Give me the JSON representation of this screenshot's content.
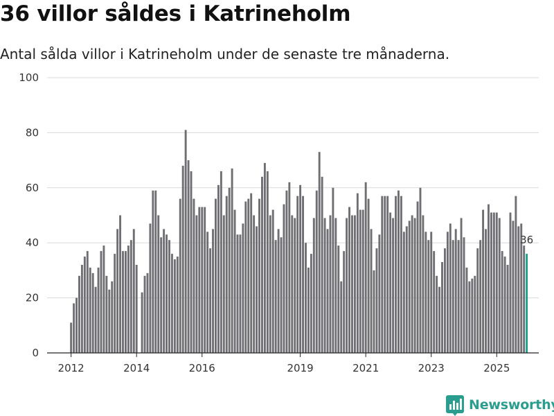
{
  "title": "36 villor såldes i Katrineholm",
  "subtitle": "Antal sålda villor i Katrineholm under de senaste tre månaderna.",
  "brand": "Newsworthy",
  "colors": {
    "bar": "#6e6e73",
    "highlight": "#1a9e8f",
    "grid": "#d9d9d9",
    "axis": "#222222",
    "brand": "#2a9d8f"
  },
  "chart_data": {
    "type": "bar",
    "title": "36 villor såldes i Katrineholm",
    "subtitle": "Antal sålda villor i Katrineholm under de senaste tre månaderna.",
    "xlabel": "",
    "ylabel": "",
    "ylim": [
      0,
      100
    ],
    "yticks": [
      "0",
      "20",
      "40",
      "60",
      "80",
      "100"
    ],
    "xticks": [
      {
        "label": "2012",
        "index": 0
      },
      {
        "label": "2014",
        "index": 24
      },
      {
        "label": "2016",
        "index": 48
      },
      {
        "label": "2019",
        "index": 84
      },
      {
        "label": "2021",
        "index": 108
      },
      {
        "label": "2023",
        "index": 132
      },
      {
        "label": "2025",
        "index": 156
      }
    ],
    "grid": true,
    "start": "2011-11",
    "end": "2025-08",
    "highlight_label": "36",
    "values": [
      11,
      18,
      20,
      28,
      32,
      35,
      37,
      31,
      29,
      24,
      31,
      37,
      39,
      28,
      23,
      26,
      36,
      45,
      50,
      37,
      37,
      39,
      41,
      45,
      32,
      0,
      22,
      28,
      29,
      47,
      59,
      59,
      50,
      42,
      45,
      43,
      41,
      36,
      34,
      35,
      56,
      68,
      81,
      70,
      66,
      56,
      50,
      53,
      53,
      53,
      44,
      38,
      45,
      56,
      61,
      66,
      50,
      57,
      60,
      67,
      52,
      43,
      43,
      47,
      55,
      56,
      58,
      50,
      46,
      56,
      64,
      69,
      66,
      50,
      52,
      41,
      45,
      42,
      54,
      59,
      62,
      50,
      49,
      57,
      61,
      57,
      40,
      31,
      36,
      49,
      59,
      73,
      64,
      49,
      45,
      50,
      60,
      49,
      39,
      26,
      37,
      49,
      53,
      50,
      50,
      58,
      52,
      52,
      62,
      56,
      45,
      30,
      38,
      43,
      57,
      57,
      57,
      51,
      49,
      57,
      59,
      57,
      44,
      46,
      48,
      50,
      49,
      55,
      60,
      50,
      44,
      41,
      44,
      37,
      28,
      24,
      33,
      38,
      44,
      47,
      41,
      45,
      41,
      49,
      42,
      31,
      26,
      27,
      28,
      38,
      41,
      52,
      45,
      54,
      51,
      51,
      51,
      49,
      37,
      35,
      32,
      51,
      48,
      57,
      46,
      47,
      39,
      36
    ]
  }
}
